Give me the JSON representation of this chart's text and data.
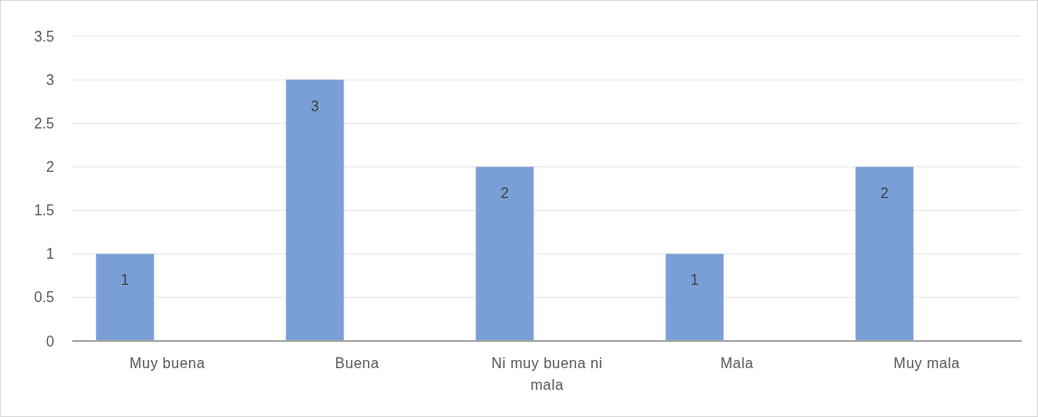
{
  "chart_data": {
    "type": "bar",
    "categories": [
      "Muy buena",
      "Buena",
      "Ni muy buena ni mala",
      "Mala",
      "Muy mala"
    ],
    "values": [
      1,
      3,
      2,
      1,
      2
    ],
    "color": "#7a9fd6",
    "ylim": [
      0,
      3.5
    ],
    "yticks": [
      0,
      0.5,
      1,
      1.5,
      2,
      2.5,
      3,
      3.5
    ],
    "grid": "y",
    "data_labels": true
  }
}
